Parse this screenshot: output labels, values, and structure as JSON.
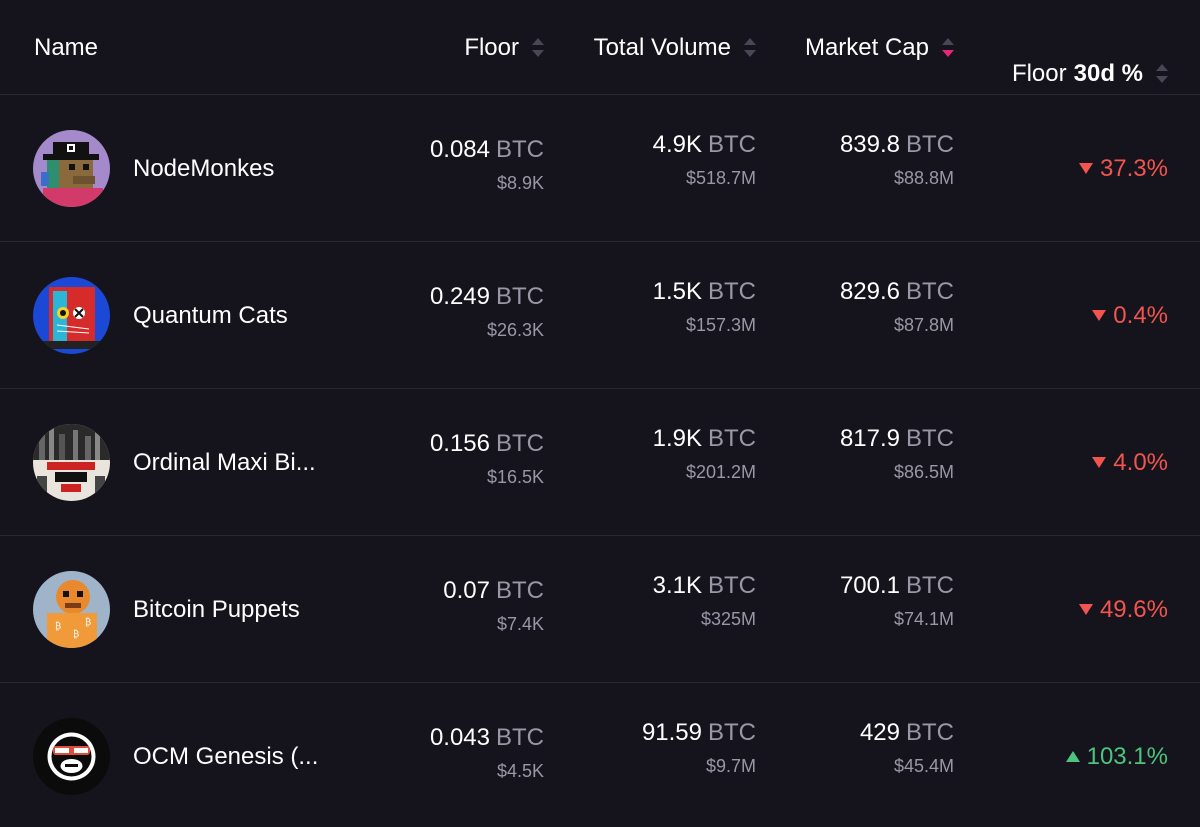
{
  "header": {
    "name": "Name",
    "floor": "Floor",
    "volume": "Total Volume",
    "mcap": "Market Cap",
    "change_prefix": "Floor",
    "change_bold": "30d %",
    "active_sort": "Market Cap"
  },
  "colors": {
    "background": "#15131c",
    "negative": "#f2554f",
    "positive": "#4dc47d",
    "sort_active": "#e5277a"
  },
  "rows": [
    {
      "name": "NodeMonkes",
      "avatar": "nodemonkes-avatar",
      "floor": "0.084",
      "floor_unit": "BTC",
      "floor_usd": "$8.9K",
      "volume": "4.9K",
      "volume_unit": "BTC",
      "volume_usd": "$518.7M",
      "mcap": "839.8",
      "mcap_unit": "BTC",
      "mcap_usd": "$88.8M",
      "change": "37.3%",
      "direction": "down"
    },
    {
      "name": "Quantum Cats",
      "avatar": "quantum-cats-avatar",
      "floor": "0.249",
      "floor_unit": "BTC",
      "floor_usd": "$26.3K",
      "volume": "1.5K",
      "volume_unit": "BTC",
      "volume_usd": "$157.3M",
      "mcap": "829.6",
      "mcap_unit": "BTC",
      "mcap_usd": "$87.8M",
      "change": "0.4%",
      "direction": "down"
    },
    {
      "name": "Ordinal Maxi Bi...",
      "avatar": "ordinal-maxi-biz-avatar",
      "floor": "0.156",
      "floor_unit": "BTC",
      "floor_usd": "$16.5K",
      "volume": "1.9K",
      "volume_unit": "BTC",
      "volume_usd": "$201.2M",
      "mcap": "817.9",
      "mcap_unit": "BTC",
      "mcap_usd": "$86.5M",
      "change": "4.0%",
      "direction": "down"
    },
    {
      "name": "Bitcoin Puppets",
      "avatar": "bitcoin-puppets-avatar",
      "floor": "0.07",
      "floor_unit": "BTC",
      "floor_usd": "$7.4K",
      "volume": "3.1K",
      "volume_unit": "BTC",
      "volume_usd": "$325M",
      "mcap": "700.1",
      "mcap_unit": "BTC",
      "mcap_usd": "$74.1M",
      "change": "49.6%",
      "direction": "down"
    },
    {
      "name": "OCM Genesis (...",
      "avatar": "ocm-genesis-avatar",
      "floor": "0.043",
      "floor_unit": "BTC",
      "floor_usd": "$4.5K",
      "volume": "91.59",
      "volume_unit": "BTC",
      "volume_usd": "$9.7M",
      "mcap": "429",
      "mcap_unit": "BTC",
      "mcap_usd": "$45.4M",
      "change": "103.1%",
      "direction": "up"
    }
  ]
}
